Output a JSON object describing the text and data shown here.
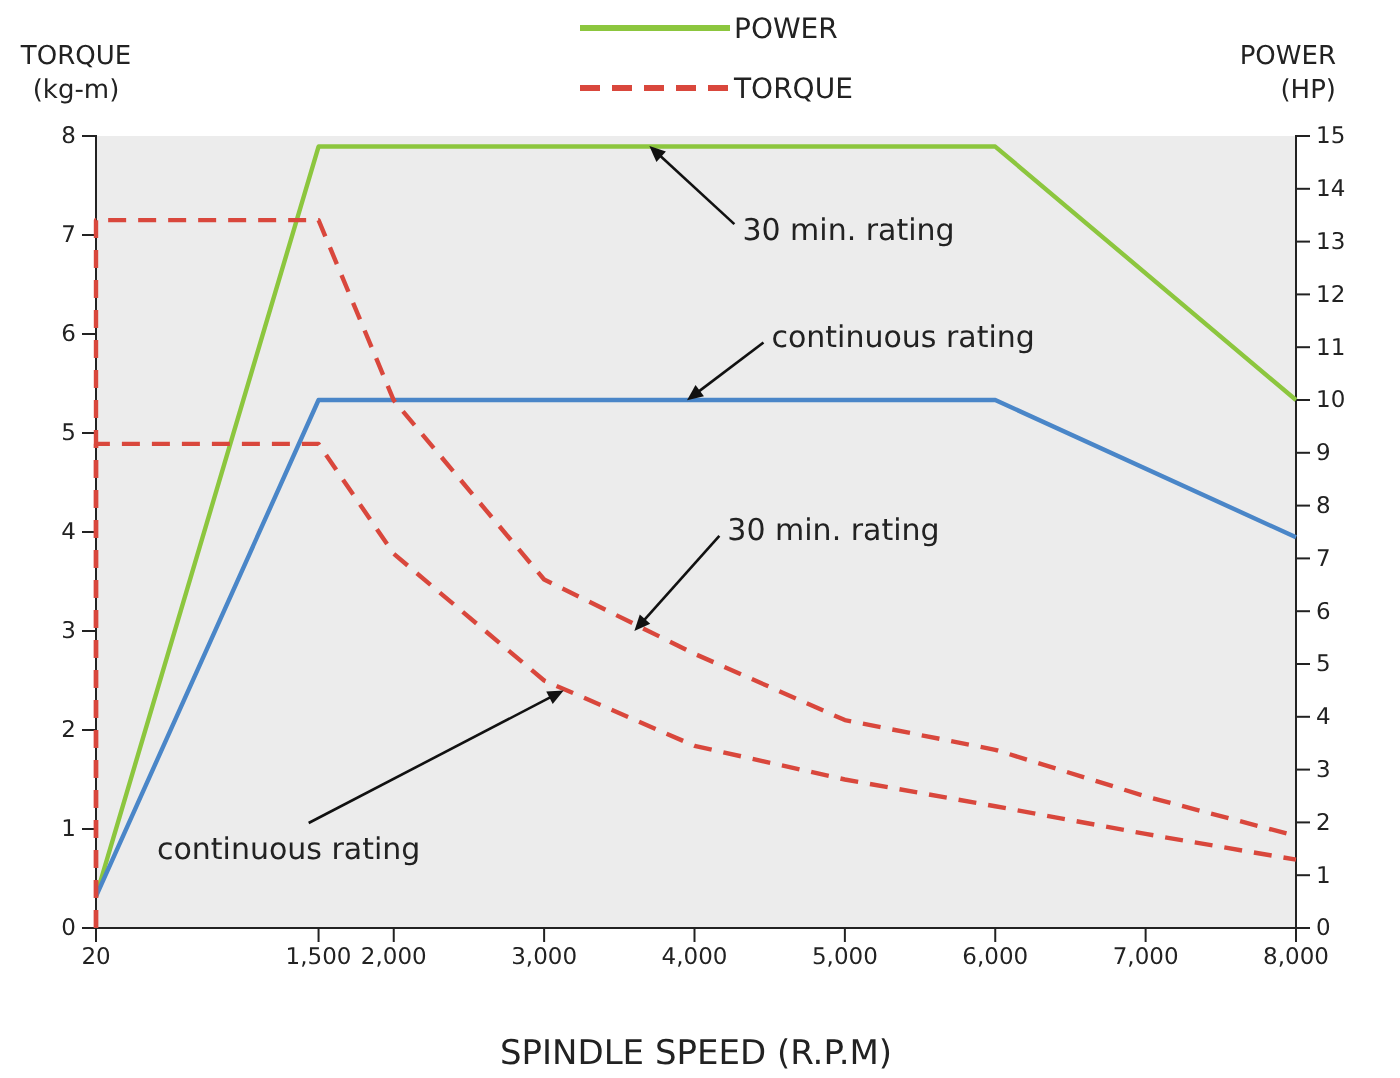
{
  "chart_data": {
    "type": "line",
    "xlabel": "SPINDLE SPEED (R.P.M)",
    "ylabel": "TORQUE (kg-m)",
    "y2label": "POWER (HP)",
    "xlim": [
      20,
      8000
    ],
    "xticks": [
      20,
      {
        "value": 1500,
        "label": "1,500"
      },
      {
        "value": 2000,
        "label": "2,000"
      },
      {
        "value": 3000,
        "label": "3,000"
      },
      {
        "value": 4000,
        "label": "4,000"
      },
      {
        "value": 5000,
        "label": "5,000"
      },
      {
        "value": 6000,
        "label": "6,000"
      },
      {
        "value": 7000,
        "label": "7,000"
      },
      {
        "value": 8000,
        "label": "8,000"
      }
    ],
    "ylim": [
      0,
      8
    ],
    "yticks": [
      0,
      1,
      2,
      3,
      4,
      5,
      6,
      7,
      8
    ],
    "y2lim": [
      0,
      15
    ],
    "y2ticks": [
      0,
      1,
      2,
      3,
      4,
      5,
      6,
      7,
      8,
      9,
      10,
      11,
      12,
      13,
      14,
      15
    ],
    "grid": false,
    "legend": "top",
    "marker": "none",
    "series": [
      {
        "name": "POWER",
        "color": "#8cc63e",
        "axis": "y2",
        "line_style": "solid",
        "x": [
          20,
          1500,
          6000,
          8000
        ],
        "values": [
          0.6,
          14.8,
          14.8,
          10
        ]
      },
      {
        "color": "#4a86c8",
        "axis": "y2",
        "line_style": "solid",
        "x": [
          20,
          1500,
          6000,
          8000
        ],
        "values": [
          0.6,
          10,
          10,
          7.4
        ]
      },
      {
        "name": "TORQUE",
        "color": "#d9473c",
        "line_style": "dashed",
        "x": [
          20,
          20,
          1500,
          2000,
          3000,
          4000,
          5000,
          6000,
          7000,
          8000
        ],
        "values": [
          0,
          7.15,
          7.15,
          5.33,
          3.52,
          2.77,
          2.1,
          1.8,
          1.33,
          0.93
        ]
      },
      {
        "color": "#d9473c",
        "line_style": "dashed",
        "x": [
          20,
          20,
          1500,
          2000,
          3000,
          4000,
          5000,
          6000,
          7000,
          8000
        ],
        "values": [
          0,
          4.89,
          4.89,
          3.78,
          2.5,
          1.84,
          1.5,
          1.23,
          0.95,
          0.69
        ]
      }
    ],
    "annotations": [
      {
        "text": "30 min. rating",
        "x": 3700,
        "y": 7.9
      },
      {
        "text": "continuous rating",
        "x": 3950,
        "y": 5.33
      },
      {
        "text": "30 min. rating",
        "x": 3600,
        "y": 3.0
      },
      {
        "text": "continuous rating",
        "x": 3130,
        "y": 2.4
      }
    ]
  }
}
